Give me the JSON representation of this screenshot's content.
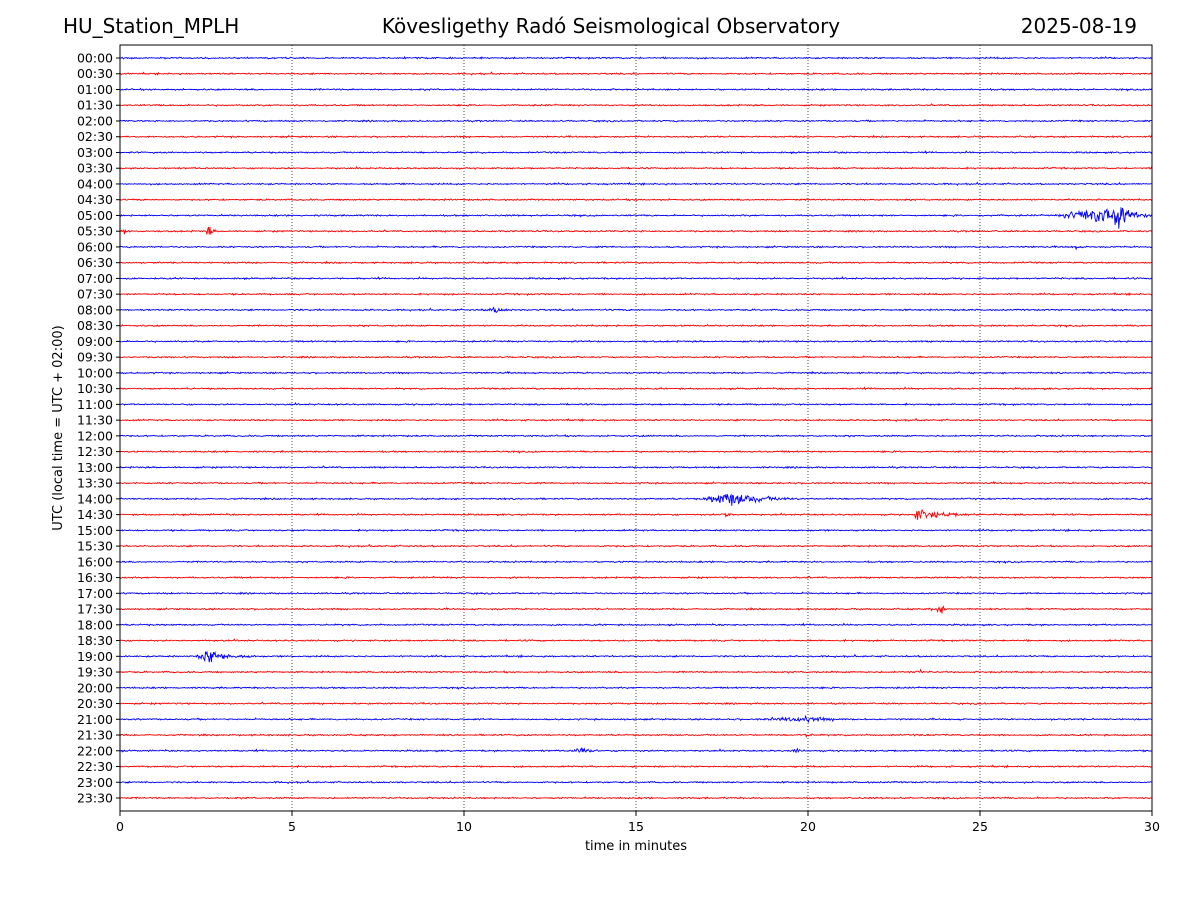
{
  "header": {
    "station": "HU_Station_MPLH",
    "observatory": "Kövesligethy Radó Seismological Observatory",
    "date": "2025-08-19"
  },
  "chart_data": {
    "type": "line",
    "title": "Kövesligethy Radó Seismological Observatory",
    "xlabel": "time in minutes",
    "ylabel": "UTC (local time = UTC + 02:00)",
    "xlim": [
      0,
      30
    ],
    "x_ticks": [
      0,
      5,
      10,
      15,
      20,
      25,
      30
    ],
    "x_tick_labels": [
      "0",
      "5",
      "10",
      "15",
      "20",
      "25",
      "30"
    ],
    "grid": "vertical dotted at x ticks",
    "row_labels": [
      "00:00",
      "00:30",
      "01:00",
      "01:30",
      "02:00",
      "02:30",
      "03:00",
      "03:30",
      "04:00",
      "04:30",
      "05:00",
      "05:30",
      "06:00",
      "06:30",
      "07:00",
      "07:30",
      "08:00",
      "08:30",
      "09:00",
      "09:30",
      "10:00",
      "10:30",
      "11:00",
      "11:30",
      "12:00",
      "12:30",
      "13:00",
      "13:30",
      "14:00",
      "14:30",
      "15:00",
      "15:30",
      "16:00",
      "16:30",
      "17:00",
      "17:30",
      "18:00",
      "18:30",
      "19:00",
      "19:30",
      "20:00",
      "20:30",
      "21:00",
      "21:30",
      "22:00",
      "22:30",
      "23:00",
      "23:30"
    ],
    "colors": [
      "#0000ff",
      "#ff0000"
    ],
    "events": [
      {
        "row": "05:00",
        "start": 27.2,
        "end": 30.0,
        "peak": 29.0,
        "amplitude": 1.0
      },
      {
        "row": "05:30",
        "start": 0.0,
        "end": 0.4,
        "peak": 0.1,
        "amplitude": 0.35
      },
      {
        "row": "05:30",
        "start": 2.5,
        "end": 2.8,
        "peak": 2.6,
        "amplitude": 0.55
      },
      {
        "row": "06:00",
        "start": 27.7,
        "end": 27.9,
        "peak": 27.8,
        "amplitude": 0.35
      },
      {
        "row": "08:00",
        "start": 10.5,
        "end": 11.5,
        "peak": 11.0,
        "amplitude": 0.18
      },
      {
        "row": "14:00",
        "start": 16.9,
        "end": 19.8,
        "peak": 17.8,
        "amplitude": 0.6
      },
      {
        "row": "14:30",
        "start": 17.4,
        "end": 18.0,
        "peak": 17.6,
        "amplitude": 0.2
      },
      {
        "row": "14:30",
        "start": 23.0,
        "end": 25.0,
        "peak": 23.2,
        "amplitude": 0.45
      },
      {
        "row": "17:30",
        "start": 23.5,
        "end": 24.2,
        "peak": 23.9,
        "amplitude": 0.25
      },
      {
        "row": "19:00",
        "start": 2.2,
        "end": 4.0,
        "peak": 2.6,
        "amplitude": 0.6
      },
      {
        "row": "19:30",
        "start": 23.0,
        "end": 23.6,
        "peak": 23.3,
        "amplitude": 0.15
      },
      {
        "row": "21:00",
        "start": 18.5,
        "end": 21.5,
        "peak": 20.0,
        "amplitude": 0.2
      },
      {
        "row": "21:30",
        "start": 19.8,
        "end": 20.2,
        "peak": 19.9,
        "amplitude": 0.25
      },
      {
        "row": "22:00",
        "start": 13.1,
        "end": 14.0,
        "peak": 13.4,
        "amplitude": 0.3
      },
      {
        "row": "22:00",
        "start": 19.5,
        "end": 19.9,
        "peak": 19.7,
        "amplitude": 0.15
      }
    ]
  }
}
